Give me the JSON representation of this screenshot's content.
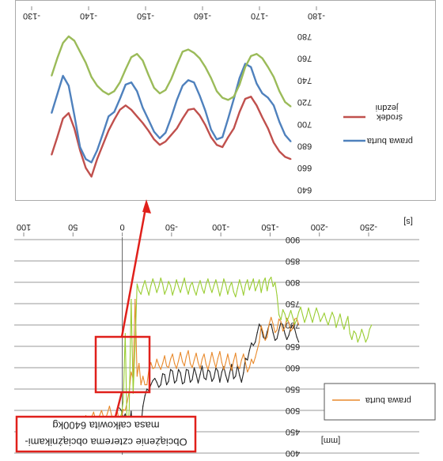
{
  "chart_data": [
    {
      "type": "line",
      "x_ticks": [
        "-180",
        "-170",
        "-160",
        "-150",
        "-140",
        "-130"
      ],
      "y_ticks": [
        "640",
        "660",
        "680",
        "700",
        "720",
        "740",
        "760",
        "780"
      ],
      "xlim": [
        -180,
        -130
      ],
      "ylim": [
        640,
        780
      ],
      "y_inverted": true,
      "grid": false,
      "legend_position": "right",
      "series": [
        {
          "name": "środek jezdni",
          "label_lines": [
            "środek",
            "jezdni"
          ],
          "color": "#c0504d",
          "x": [
            -175.5,
            -174.5,
            -173.5,
            -172.5,
            -171.5,
            -170.5,
            -169.5,
            -168.5,
            -167.5,
            -166.5,
            -165.5,
            -164.5,
            -163.5,
            -162.5,
            -161.5,
            -160.5,
            -159.5,
            -158.5,
            -157.5,
            -156.5,
            -155.5,
            -154.5,
            -153.5,
            -152.5,
            -151.5,
            -150.5,
            -149.5,
            -148.5,
            -147.5,
            -146.5,
            -145.5,
            -144.5,
            -143.5,
            -142.5,
            -141.5,
            -140.5,
            -139.5,
            -138.5,
            -137.5,
            -136.5,
            -135.5,
            -134.5,
            -133.5
          ],
          "values": [
            668,
            670,
            675,
            683,
            696,
            706,
            717,
            725,
            723,
            711,
            696,
            688,
            679,
            681,
            688,
            699,
            708,
            714,
            713,
            705,
            696,
            690,
            684,
            681,
            686,
            694,
            701,
            707,
            713,
            717,
            713,
            704,
            694,
            681,
            668,
            652,
            660,
            676,
            696,
            710,
            705,
            688,
            672
          ]
        },
        {
          "name": "prawa burta",
          "label_lines": [
            "prawa burta"
          ],
          "color": "#4f81bd",
          "x": [
            -175.5,
            -174.5,
            -173.5,
            -172.5,
            -171.5,
            -170.5,
            -169.5,
            -168.5,
            -167.5,
            -166.5,
            -165.5,
            -164.5,
            -163.5,
            -162.5,
            -161.5,
            -160.5,
            -159.5,
            -158.5,
            -157.5,
            -156.5,
            -155.5,
            -154.5,
            -153.5,
            -152.5,
            -151.5,
            -150.5,
            -149.5,
            -148.5,
            -147.5,
            -146.5,
            -145.5,
            -144.5,
            -143.5,
            -142.5,
            -141.5,
            -140.5,
            -139.5,
            -138.5,
            -137.5,
            -136.5,
            -135.5,
            -134.5,
            -133.5
          ],
          "values": [
            684,
            690,
            702,
            717,
            724,
            728,
            737,
            752,
            755,
            742,
            723,
            705,
            688,
            686,
            695,
            712,
            726,
            738,
            740,
            735,
            722,
            706,
            692,
            687,
            693,
            704,
            715,
            730,
            738,
            736,
            723,
            711,
            707,
            691,
            676,
            665,
            668,
            679,
            708,
            735,
            744,
            727,
            710
          ]
        },
        {
          "name": "",
          "label_lines": [],
          "color": "#9bbb59",
          "x": [
            -175.5,
            -174.5,
            -173.5,
            -172.5,
            -171.5,
            -170.5,
            -169.5,
            -168.5,
            -167.5,
            -166.5,
            -165.5,
            -164.5,
            -163.5,
            -162.5,
            -161.5,
            -160.5,
            -159.5,
            -158.5,
            -157.5,
            -156.5,
            -155.5,
            -154.5,
            -153.5,
            -152.5,
            -151.5,
            -150.5,
            -149.5,
            -148.5,
            -147.5,
            -146.5,
            -145.5,
            -144.5,
            -143.5,
            -142.5,
            -141.5,
            -140.5,
            -139.5,
            -138.5,
            -137.5,
            -136.5,
            -135.5,
            -134.5,
            -133.5
          ],
          "values": [
            716,
            720,
            730,
            743,
            752,
            760,
            764,
            762,
            752,
            736,
            725,
            722,
            724,
            730,
            742,
            752,
            760,
            765,
            768,
            766,
            754,
            741,
            731,
            728,
            733,
            745,
            758,
            764,
            761,
            750,
            738,
            730,
            727,
            730,
            735,
            743,
            756,
            766,
            776,
            780,
            774,
            760,
            744
          ]
        }
      ]
    },
    {
      "type": "line",
      "xlabel": "[s]",
      "ylabel": "[mm]",
      "x_ticks": [
        "-250",
        "-200",
        "-150",
        "-100",
        "-50",
        "0",
        "50",
        "100"
      ],
      "y_ticks": [
        "400",
        "450",
        "500",
        "550",
        "600",
        "650",
        "700",
        "750",
        "800",
        "850",
        "900"
      ],
      "xlim": [
        -250,
        100
      ],
      "ylim": [
        400,
        900
      ],
      "y_inverted": true,
      "grid": true,
      "legend_position": "bottom-left",
      "legend_entries": [
        "prawa burta"
      ],
      "annotation_lines": [
        "Obciążenie czterema obciążnikami-",
        "masa całkowita 6400kg"
      ],
      "series": [
        {
          "name": "",
          "color": "#222222",
          "x": [
            -179,
            -177,
            -175,
            -173,
            -171,
            -169,
            -167,
            -165,
            -163,
            -161,
            -159,
            -157,
            -155,
            -153,
            -151,
            -149,
            -147,
            -145,
            -143,
            -141,
            -139,
            -137,
            -135,
            -133,
            -131,
            -129,
            -127,
            -125,
            -123,
            -121,
            -119,
            -117,
            -115,
            -113,
            -111,
            -109,
            -107,
            -105,
            -103,
            -101,
            -99,
            -97,
            -95,
            -93,
            -91,
            -89,
            -87,
            -85,
            -83,
            -81,
            -79,
            -77,
            -75,
            -73,
            -71,
            -69,
            -67,
            -65,
            -63,
            -61,
            -59,
            -57,
            -55,
            -53,
            -51,
            -49,
            -47,
            -45,
            -43,
            -41,
            -39,
            -37,
            -35,
            -33,
            -31,
            -29,
            -27,
            -25,
            -23,
            -21,
            -19,
            -17,
            -15,
            -13,
            -11,
            -9,
            -7,
            -5,
            -3,
            -1,
            1,
            3
          ],
          "values": [
            660,
            672,
            690,
            700,
            694,
            676,
            666,
            680,
            700,
            706,
            688,
            668,
            664,
            682,
            702,
            700,
            684,
            666,
            672,
            694,
            702,
            682,
            660,
            652,
            658,
            640,
            618,
            622,
            588,
            566,
            582,
            606,
            580,
            574,
            608,
            588,
            566,
            582,
            602,
            590,
            566,
            592,
            600,
            576,
            568,
            590,
            596,
            572,
            576,
            604,
            584,
            564,
            584,
            600,
            572,
            566,
            594,
            596,
            566,
            562,
            588,
            596,
            570,
            564,
            592,
            596,
            568,
            560,
            584,
            586,
            560,
            554,
            566,
            575,
            570,
            560,
            546,
            550,
            534,
            510,
            464,
            430,
            486,
            442,
            436,
            498,
            462,
            470,
            492,
            482,
            500,
            506
          ]
        },
        {
          "name": "prawa burta",
          "color": "#e8892b",
          "x": [
            -179,
            -177,
            -175,
            -173,
            -171,
            -169,
            -167,
            -165,
            -163,
            -161,
            -159,
            -157,
            -155,
            -153,
            -151,
            -149,
            -147,
            -145,
            -143,
            -141,
            -139,
            -137,
            -135,
            -133,
            -131,
            -129,
            -127,
            -125,
            -123,
            -121,
            -119,
            -117,
            -115,
            -113,
            -111,
            -109,
            -107,
            -105,
            -103,
            -101,
            -99,
            -97,
            -95,
            -93,
            -91,
            -89,
            -87,
            -85,
            -83,
            -81,
            -79,
            -77,
            -75,
            -73,
            -71,
            -69,
            -67,
            -65,
            -63,
            -61,
            -59,
            -57,
            -55,
            -53,
            -51,
            -49,
            -47,
            -45,
            -43,
            -41,
            -39,
            -37,
            -35,
            -33,
            -31,
            -29,
            -27,
            -25,
            -23,
            -21,
            -19,
            -17,
            -15,
            -13,
            -11,
            -9,
            -7,
            -5,
            -3,
            -1,
            1,
            3,
            5,
            7,
            9,
            11,
            13,
            15,
            17,
            19,
            21,
            23,
            25,
            27,
            29,
            31,
            33,
            35,
            37,
            39,
            41,
            43,
            45,
            47,
            49,
            51,
            53,
            55,
            57,
            59,
            61,
            63,
            65,
            67,
            69,
            71,
            73,
            75,
            77,
            79
          ],
          "values": [
            700,
            716,
            714,
            692,
            686,
            706,
            716,
            694,
            686,
            708,
            714,
            688,
            682,
            702,
            718,
            702,
            672,
            664,
            682,
            698,
            660,
            642,
            624,
            610,
            620,
            600,
            590,
            612,
            632,
            618,
            598,
            604,
            634,
            616,
            594,
            610,
            632,
            612,
            596,
            612,
            638,
            622,
            600,
            616,
            636,
            614,
            596,
            608,
            632,
            620,
            598,
            612,
            634,
            618,
            600,
            610,
            640,
            626,
            604,
            614,
            636,
            616,
            598,
            610,
            632,
            620,
            600,
            604,
            628,
            610,
            596,
            606,
            620,
            600,
            598,
            612,
            596,
            560,
            560,
            580,
            560,
            610,
            580,
            760,
            574,
            590,
            544,
            520,
            500,
            502,
            480,
            470,
            500,
            488,
            476,
            490,
            510,
            494,
            480,
            484,
            500,
            488,
            474,
            478,
            496,
            486,
            470,
            472,
            488,
            472,
            464,
            470,
            486,
            476,
            466,
            464,
            478,
            470,
            460,
            458,
            474,
            468,
            458,
            448,
            460,
            458,
            454,
            466,
            448,
            452
          ]
        },
        {
          "name": "",
          "color": "#9acd32",
          "x": [
            -253,
            -251,
            -249,
            -247,
            -245,
            -243,
            -241,
            -239,
            -237,
            -235,
            -233,
            -231,
            -229,
            -227,
            -225,
            -223,
            -221,
            -219,
            -217,
            -215,
            -213,
            -211,
            -209,
            -207,
            -205,
            -203,
            -201,
            -199,
            -197,
            -195,
            -193,
            -191,
            -189,
            -187,
            -185,
            -183,
            -181,
            -179,
            -177,
            -175,
            -173,
            -171,
            -169,
            -167,
            -165,
            -163,
            -161,
            -159,
            -157,
            -155,
            -153,
            -151,
            -149,
            -147,
            -145,
            -143,
            -141,
            -139,
            -137,
            -135,
            -133,
            -131,
            -129,
            -127,
            -125,
            -123,
            -121,
            -119,
            -117,
            -115,
            -113,
            -111,
            -109,
            -107,
            -105,
            -103,
            -101,
            -99,
            -97,
            -95,
            -93,
            -91,
            -89,
            -87,
            -85,
            -83,
            -81,
            -79,
            -77,
            -75,
            -73,
            -71,
            -69,
            -67,
            -65,
            -63,
            -61,
            -59,
            -57,
            -55,
            -53,
            -51,
            -49,
            -47,
            -45,
            -43,
            -41,
            -39,
            -37,
            -35,
            -33,
            -31,
            -29,
            -27,
            -25,
            -23,
            -21,
            -19,
            -17,
            -15,
            -13,
            -11,
            -9,
            -7,
            -5,
            -3,
            -1,
            1,
            3,
            5
          ],
          "values": [
            700,
            690,
            670,
            660,
            676,
            690,
            672,
            660,
            680,
            686,
            666,
            680,
            720,
            706,
            690,
            704,
            726,
            710,
            694,
            718,
            730,
            716,
            700,
            712,
            728,
            718,
            708,
            726,
            740,
            724,
            706,
            722,
            740,
            720,
            706,
            724,
            742,
            730,
            712,
            702,
            718,
            734,
            720,
            708,
            726,
            736,
            712,
            724,
            770,
            800,
            790,
            812,
            805,
            780,
            810,
            800,
            776,
            806,
            792,
            780,
            808,
            796,
            782,
            806,
            794,
            770,
            790,
            806,
            786,
            766,
            778,
            800,
            790,
            772,
            794,
            808,
            786,
            768,
            788,
            806,
            792,
            776,
            790,
            808,
            796,
            774,
            786,
            804,
            790,
            770,
            782,
            800,
            792,
            772,
            788,
            810,
            794,
            776,
            790,
            806,
            786,
            770,
            792,
            802,
            784,
            772,
            796,
            810,
            790,
            776,
            794,
            808,
            792,
            770,
            786,
            804,
            790,
            772,
            780,
            796,
            650,
            540,
            760,
            500,
            440,
            680,
            520,
            490,
            480,
            470
          ]
        }
      ]
    }
  ]
}
